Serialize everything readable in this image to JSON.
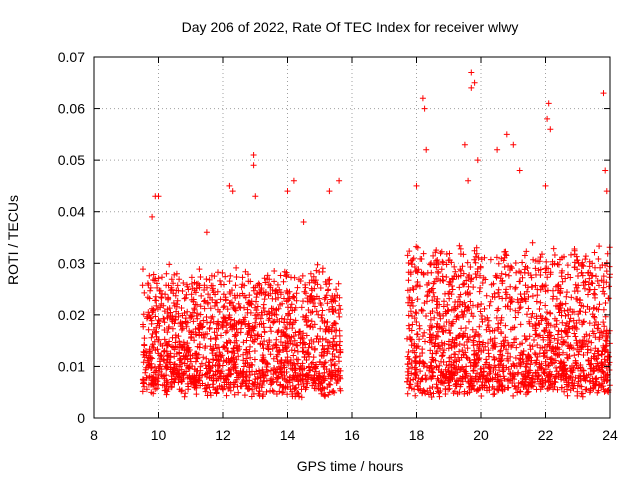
{
  "chart_data": {
    "type": "scatter",
    "title": "Day 206 of 2022, Rate Of TEC Index for receiver wlwy",
    "xlabel": "GPS time / hours",
    "ylabel": "ROTI / TECUs",
    "xlim": [
      8,
      24
    ],
    "ylim": [
      0,
      0.07
    ],
    "xticks": [
      8,
      10,
      12,
      14,
      16,
      18,
      20,
      22,
      24
    ],
    "xtick_labels": [
      "8",
      "10",
      "12",
      "14",
      "16",
      "18",
      "20",
      "22",
      "24"
    ],
    "yticks": [
      0,
      0.01,
      0.02,
      0.03,
      0.04,
      0.05,
      0.06,
      0.07
    ],
    "ytick_labels": [
      "0",
      "0.01",
      "0.02",
      "0.03",
      "0.04",
      "0.05",
      "0.06",
      "0.07"
    ],
    "grid": true,
    "marker": "+",
    "color": "#ff0000",
    "series": [
      {
        "name": "ROTI",
        "data_segments": [
          {
            "x_start": 9.5,
            "x_end": 15.65,
            "typical_min": 0.006,
            "typical_max": 0.028
          },
          {
            "x_start": 17.7,
            "x_end": 24.0,
            "typical_min": 0.006,
            "typical_max": 0.032
          }
        ],
        "notable_points": [
          [
            9.8,
            0.039
          ],
          [
            9.9,
            0.043
          ],
          [
            10.0,
            0.043
          ],
          [
            11.5,
            0.036
          ],
          [
            12.2,
            0.045
          ],
          [
            12.3,
            0.044
          ],
          [
            12.95,
            0.051
          ],
          [
            12.95,
            0.049
          ],
          [
            13.0,
            0.043
          ],
          [
            14.0,
            0.044
          ],
          [
            14.2,
            0.046
          ],
          [
            14.5,
            0.038
          ],
          [
            15.3,
            0.044
          ],
          [
            15.6,
            0.046
          ],
          [
            18.2,
            0.062
          ],
          [
            18.25,
            0.06
          ],
          [
            18.3,
            0.052
          ],
          [
            19.5,
            0.053
          ],
          [
            19.7,
            0.067
          ],
          [
            19.7,
            0.064
          ],
          [
            19.8,
            0.065
          ],
          [
            19.6,
            0.046
          ],
          [
            19.9,
            0.05
          ],
          [
            20.5,
            0.052
          ],
          [
            20.8,
            0.055
          ],
          [
            21.0,
            0.053
          ],
          [
            21.2,
            0.048
          ],
          [
            22.1,
            0.061
          ],
          [
            22.05,
            0.058
          ],
          [
            22.15,
            0.056
          ],
          [
            22.0,
            0.045
          ],
          [
            23.8,
            0.063
          ],
          [
            23.85,
            0.048
          ],
          [
            23.9,
            0.044
          ],
          [
            21.6,
            0.034
          ],
          [
            18.0,
            0.045
          ]
        ]
      }
    ]
  }
}
